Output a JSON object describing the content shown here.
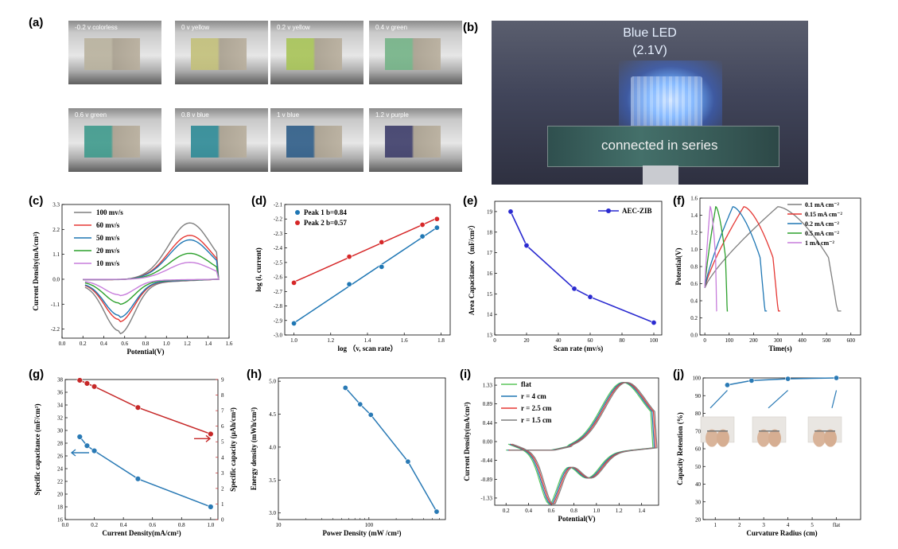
{
  "panels": {
    "a": "(a)",
    "b": "(b)",
    "c": "(c)",
    "d": "(d)",
    "e": "(e)",
    "f": "(f)",
    "g": "(g)",
    "h": "(h)",
    "i": "(i)",
    "j": "(j)"
  },
  "panel_a": {
    "jars": [
      {
        "label": "-0.2 v  colorless",
        "color": "#b9b29e"
      },
      {
        "label": "0 v   yellow",
        "color": "#c3c07a"
      },
      {
        "label": "0.2 v   yellow",
        "color": "#a8c457"
      },
      {
        "label": "0.4 v   green",
        "color": "#74b387"
      },
      {
        "label": "0.6 v   green",
        "color": "#3e9a8c"
      },
      {
        "label": "0.8 v   blue",
        "color": "#2d8a96"
      },
      {
        "label": "1 v   blue",
        "color": "#2e5d88"
      },
      {
        "label": "1.2 v   purple",
        "color": "#3d3d6a"
      }
    ]
  },
  "panel_b": {
    "led_label": "Blue LED",
    "voltage": "(2.1V)",
    "series_label": "connected in series"
  },
  "chart_data": [
    {
      "panel": "c",
      "type": "line",
      "xlabel": "Potential(V)",
      "ylabel": "Current Density(mA/cm²)",
      "xlim": [
        0.0,
        1.6
      ],
      "ylim": [
        -2.6,
        3.3
      ],
      "xticks": [
        "0.0",
        "0.2",
        "0.4",
        "0.6",
        "0.8",
        "1.0",
        "1.2",
        "1.4",
        "1.6"
      ],
      "yticks": [
        "-2.2",
        "-1.1",
        "0.0",
        "1.1",
        "2.2",
        "3.3"
      ],
      "legend_position": "top-left",
      "series": [
        {
          "name": "100 mv/s",
          "color": "#7f7f7f",
          "scale": 1.0
        },
        {
          "name": "60  mv/s",
          "color": "#e53935",
          "scale": 0.78
        },
        {
          "name": "50  mv/s",
          "color": "#1f77b4",
          "scale": 0.7
        },
        {
          "name": "20  mv/s",
          "color": "#2ca02c",
          "scale": 0.46
        },
        {
          "name": "10  mv/s",
          "color": "#c77ddb",
          "scale": 0.3
        }
      ]
    },
    {
      "panel": "d",
      "type": "scatter",
      "xlabel": "log  （v, scan rate）",
      "ylabel": "log  (i, current)",
      "xlim": [
        0.95,
        1.85
      ],
      "ylim": [
        -3.0,
        -2.1
      ],
      "xticks": [
        "1.0",
        "1.2",
        "1.4",
        "1.6",
        "1.8"
      ],
      "yticks": [
        "-3.0",
        "-2.9",
        "-2.8",
        "-2.7",
        "-2.6",
        "-2.5",
        "-2.4",
        "-2.3",
        "-2.2",
        "-2.1"
      ],
      "legend_position": "top-left",
      "series": [
        {
          "name": "Peak 1  b=0.84",
          "color": "#1f77b4",
          "x": [
            1.0,
            1.301,
            1.477,
            1.699,
            1.778
          ],
          "y": [
            -2.92,
            -2.65,
            -2.53,
            -2.32,
            -2.26
          ]
        },
        {
          "name": "Peak 2  b=0.57",
          "color": "#d62728",
          "x": [
            1.0,
            1.301,
            1.477,
            1.699,
            1.778
          ],
          "y": [
            -2.64,
            -2.46,
            -2.36,
            -2.24,
            -2.2
          ]
        }
      ]
    },
    {
      "panel": "e",
      "type": "line",
      "xlabel": "Scan rate   (mv/s)",
      "ylabel": "Area Capacitance （mF/cm²）",
      "xlim": [
        0,
        105
      ],
      "ylim": [
        13,
        19.5
      ],
      "xticks": [
        "0",
        "20",
        "40",
        "60",
        "80",
        "100"
      ],
      "yticks": [
        "13",
        "14",
        "15",
        "16",
        "17",
        "18",
        "19"
      ],
      "legend_position": "top-right",
      "series": [
        {
          "name": "AEC-ZIB",
          "color": "#2a2ad0",
          "x": [
            10,
            20,
            50,
            60,
            100
          ],
          "y": [
            19.0,
            17.35,
            15.25,
            14.85,
            13.6
          ]
        }
      ]
    },
    {
      "panel": "f",
      "type": "line",
      "xlabel": "Time(s)",
      "ylabel": "Potential(V)",
      "xlim": [
        -20,
        640
      ],
      "ylim": [
        0,
        1.6
      ],
      "xticks": [
        "0",
        "100",
        "200",
        "300",
        "400",
        "500",
        "600"
      ],
      "yticks": [
        "0.0",
        "0.2",
        "0.4",
        "0.6",
        "0.8",
        "1.0",
        "1.2",
        "1.4",
        "1.6"
      ],
      "legend_position": "top-right",
      "series": [
        {
          "name": "0.1  mA cm⁻²",
          "color": "#7f7f7f",
          "charge_end": 300,
          "discharge_end": 560
        },
        {
          "name": "0.15 mA cm⁻²",
          "color": "#e53935",
          "charge_end": 160,
          "discharge_end": 310
        },
        {
          "name": "0.2  mA cm⁻²",
          "color": "#1f77b4",
          "charge_end": 115,
          "discharge_end": 255
        },
        {
          "name": "0.5  mA cm⁻²",
          "color": "#2ca02c",
          "charge_end": 45,
          "discharge_end": 95
        },
        {
          "name": "1    mA cm⁻²",
          "color": "#c77ddb",
          "charge_end": 22,
          "discharge_end": 50
        }
      ]
    },
    {
      "panel": "g",
      "type": "line",
      "xlabel": "Current Density(mA/cm²)",
      "ylabel": "Specific capacitance (mF/cm²)",
      "ylabel_right": "Specific capacity (μAh/cm²)",
      "xlim": [
        0.0,
        1.05
      ],
      "ylim": [
        16,
        38
      ],
      "ylim_right": [
        0,
        9
      ],
      "xticks": [
        "0.0",
        "0.2",
        "0.4",
        "0.6",
        "0.8",
        "1.0"
      ],
      "yticks": [
        "16",
        "18",
        "20",
        "22",
        "24",
        "26",
        "28",
        "30",
        "32",
        "34",
        "36",
        "38"
      ],
      "yticks_right": [
        "0",
        "1",
        "2",
        "3",
        "4",
        "5",
        "6",
        "7",
        "8",
        "9"
      ],
      "series": [
        {
          "name": "Specific capacitance",
          "color": "#2a7ab5",
          "axis": "left",
          "x": [
            0.1,
            0.15,
            0.2,
            0.5,
            1.0
          ],
          "y": [
            29.0,
            27.6,
            26.8,
            22.4,
            18.0
          ]
        },
        {
          "name": "Specific capacity",
          "color": "#c62828",
          "axis": "right",
          "x": [
            0.1,
            0.15,
            0.2,
            0.5,
            1.0
          ],
          "y": [
            8.95,
            8.75,
            8.55,
            7.2,
            5.5
          ]
        }
      ]
    },
    {
      "panel": "h",
      "type": "line",
      "xlabel": "Power Density (mW /cm²)",
      "ylabel": "Energy density  (mWh/cm²)",
      "xscale": "log",
      "xlim": [
        10,
        700
      ],
      "ylim": [
        2.9,
        5.05
      ],
      "xticks": [
        "10",
        "100"
      ],
      "yticks": [
        "3.0",
        "3.5",
        "4.0",
        "4.5",
        "5.0"
      ],
      "series": [
        {
          "name": "Energy density",
          "color": "#2a7ab5",
          "x": [
            55,
            80,
            105,
            270,
            560
          ],
          "y": [
            4.9,
            4.65,
            4.49,
            3.78,
            3.02
          ]
        }
      ]
    },
    {
      "panel": "i",
      "type": "line",
      "xlabel": "Potential(V)",
      "ylabel": "Current Density(mA/cm²)",
      "xlim": [
        0.1,
        1.55
      ],
      "ylim": [
        -1.5,
        1.5
      ],
      "xticks": [
        "0.2",
        "0.4",
        "0.6",
        "0.8",
        "1.0",
        "1.2",
        "1.4"
      ],
      "yticks": [
        "-1.33",
        "-0.89",
        "-0.44",
        "0.00",
        "0.44",
        "0.89",
        "1.33"
      ],
      "legend_position": "top-left",
      "series": [
        {
          "name": "flat",
          "color": "#5cc65c"
        },
        {
          "name": "r =  4   cm",
          "color": "#1f77b4"
        },
        {
          "name": "r = 2.5 cm",
          "color": "#e53935"
        },
        {
          "name": "r = 1.5 cm",
          "color": "#7f7f7f"
        }
      ]
    },
    {
      "panel": "j",
      "type": "line",
      "xlabel": "Curvature Radius  (cm)",
      "ylabel": "Capacity Retention (%)",
      "xlim": [
        0.5,
        7.0
      ],
      "ylim": [
        20,
        100
      ],
      "xticks": [
        "1",
        "2",
        "3",
        "4",
        "5",
        "flat"
      ],
      "yticks": [
        "20",
        "30",
        "40",
        "50",
        "60",
        "70",
        "80",
        "90",
        "100"
      ],
      "series": [
        {
          "name": "Capacity Retention",
          "color": "#2a7ab5",
          "x": [
            1.5,
            2.5,
            4.0,
            6.0
          ],
          "y": [
            96,
            98.5,
            99.5,
            100
          ]
        }
      ]
    }
  ]
}
